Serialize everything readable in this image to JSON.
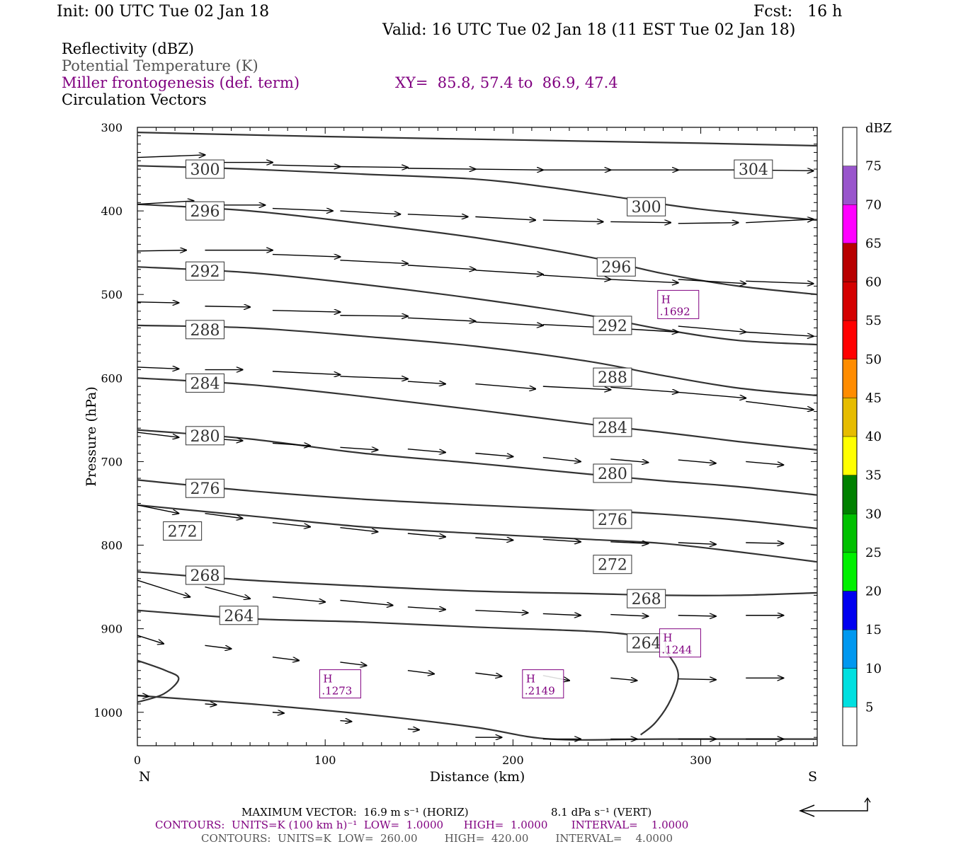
{
  "header": {
    "init": "Init: 00 UTC Tue 02 Jan 18",
    "fcst": "Fcst:   16 h",
    "valid": "Valid: 16 UTC Tue 02 Jan 18 (11 EST Tue 02 Jan 18)",
    "fields": [
      {
        "text": "Reflectivity (dBZ)",
        "color": "#000000"
      },
      {
        "text": "Potential Temperature (K)",
        "color": "#555555"
      },
      {
        "text": "Miller frontogenesis (def. term)",
        "color": "#800080"
      },
      {
        "text": "Circulation Vectors",
        "color": "#000000"
      }
    ],
    "xy": "XY=  85.8, 57.4 to  86.9, 47.4"
  },
  "chart_data": {
    "type": "cross-section",
    "xlabel": "Distance (km)",
    "ylabel": "Pressure (hPa)",
    "xlim": [
      0,
      362
    ],
    "ylim": [
      1040,
      300
    ],
    "x_ticks": [
      0,
      100,
      200,
      300
    ],
    "y_ticks": [
      300,
      400,
      500,
      600,
      700,
      800,
      900,
      1000
    ],
    "x_end_labels": {
      "left": "N",
      "right": "S"
    },
    "theta_contours": [
      {
        "label": "304",
        "points": [
          [
            0,
            306
          ],
          [
            100,
            311
          ],
          [
            200,
            315
          ],
          [
            300,
            319
          ],
          [
            362,
            322
          ]
        ]
      },
      {
        "label": "300",
        "points": [
          [
            0,
            346
          ],
          [
            60,
            350
          ],
          [
            120,
            356
          ],
          [
            180,
            362
          ],
          [
            220,
            372
          ],
          [
            260,
            385
          ],
          [
            300,
            398
          ],
          [
            362,
            411
          ]
        ]
      },
      {
        "label": "296",
        "points": [
          [
            0,
            392
          ],
          [
            60,
            400
          ],
          [
            120,
            415
          ],
          [
            180,
            432
          ],
          [
            240,
            455
          ],
          [
            280,
            475
          ],
          [
            320,
            490
          ],
          [
            362,
            500
          ]
        ]
      },
      {
        "label": "292",
        "points": [
          [
            0,
            467
          ],
          [
            60,
            474
          ],
          [
            120,
            488
          ],
          [
            180,
            505
          ],
          [
            240,
            525
          ],
          [
            280,
            542
          ],
          [
            320,
            555
          ],
          [
            362,
            560
          ]
        ]
      },
      {
        "label": "288",
        "points": [
          [
            0,
            537
          ],
          [
            60,
            540
          ],
          [
            120,
            550
          ],
          [
            180,
            562
          ],
          [
            240,
            580
          ],
          [
            280,
            597
          ],
          [
            320,
            612
          ],
          [
            362,
            621
          ]
        ]
      },
      {
        "label": "284",
        "points": [
          [
            0,
            600
          ],
          [
            60,
            608
          ],
          [
            120,
            622
          ],
          [
            180,
            638
          ],
          [
            240,
            655
          ],
          [
            280,
            665
          ],
          [
            320,
            676
          ],
          [
            362,
            686
          ]
        ]
      },
      {
        "label": "280",
        "points": [
          [
            0,
            662
          ],
          [
            60,
            673
          ],
          [
            120,
            690
          ],
          [
            180,
            702
          ],
          [
            240,
            715
          ],
          [
            280,
            723
          ],
          [
            320,
            730
          ],
          [
            362,
            740
          ]
        ]
      },
      {
        "label": "276",
        "points": [
          [
            0,
            722
          ],
          [
            60,
            735
          ],
          [
            120,
            745
          ],
          [
            180,
            752
          ],
          [
            240,
            758
          ],
          [
            280,
            763
          ],
          [
            320,
            770
          ],
          [
            362,
            780
          ]
        ]
      },
      {
        "label": "272",
        "points": [
          [
            0,
            752
          ],
          [
            60,
            765
          ],
          [
            120,
            778
          ],
          [
            180,
            786
          ],
          [
            240,
            793
          ],
          [
            280,
            798
          ],
          [
            320,
            808
          ],
          [
            362,
            820
          ]
        ]
      },
      {
        "label": "268",
        "points": [
          [
            0,
            832
          ],
          [
            60,
            842
          ],
          [
            120,
            849
          ],
          [
            180,
            855
          ],
          [
            240,
            858
          ],
          [
            280,
            860
          ],
          [
            320,
            860
          ],
          [
            362,
            857
          ]
        ]
      },
      {
        "label": "264",
        "points": [
          [
            0,
            878
          ],
          [
            60,
            888
          ],
          [
            120,
            892
          ],
          [
            180,
            898
          ],
          [
            240,
            903
          ],
          [
            265,
            908
          ],
          [
            275,
            915
          ],
          [
            283,
            932
          ],
          [
            288,
            955
          ],
          [
            284,
            985
          ],
          [
            276,
            1012
          ],
          [
            268,
            1027
          ]
        ]
      },
      {
        "label": "",
        "points": [
          [
            0,
            938
          ],
          [
            15,
            950
          ],
          [
            22,
            960
          ],
          [
            14,
            978
          ],
          [
            0,
            988
          ]
        ]
      },
      {
        "label": "",
        "points": [
          [
            0,
            980
          ],
          [
            60,
            990
          ],
          [
            120,
            1002
          ],
          [
            180,
            1018
          ],
          [
            220,
            1032
          ],
          [
            280,
            1032
          ],
          [
            362,
            1032
          ]
        ]
      }
    ],
    "theta_labels": [
      {
        "text": "300",
        "x": 36,
        "p": 350
      },
      {
        "text": "304",
        "x": 328,
        "p": 350
      },
      {
        "text": "296",
        "x": 36,
        "p": 400
      },
      {
        "text": "300",
        "x": 271,
        "p": 395
      },
      {
        "text": "292",
        "x": 36,
        "p": 472
      },
      {
        "text": "296",
        "x": 255,
        "p": 467
      },
      {
        "text": "288",
        "x": 36,
        "p": 542
      },
      {
        "text": "292",
        "x": 253,
        "p": 537
      },
      {
        "text": "284",
        "x": 36,
        "p": 606
      },
      {
        "text": "288",
        "x": 253,
        "p": 599
      },
      {
        "text": "280",
        "x": 36,
        "p": 669
      },
      {
        "text": "284",
        "x": 253,
        "p": 659
      },
      {
        "text": "276",
        "x": 36,
        "p": 732
      },
      {
        "text": "280",
        "x": 253,
        "p": 714
      },
      {
        "text": "272",
        "x": 24,
        "p": 783
      },
      {
        "text": "276",
        "x": 253,
        "p": 769
      },
      {
        "text": "268",
        "x": 36,
        "p": 836
      },
      {
        "text": "272",
        "x": 253,
        "p": 823
      },
      {
        "text": "264",
        "x": 54,
        "p": 884
      },
      {
        "text": "268",
        "x": 271,
        "p": 864
      },
      {
        "text": "264",
        "x": 271,
        "p": 917
      }
    ],
    "frontogenesis_highs": [
      {
        "label": "H",
        "value": ".1692",
        "x": 288,
        "p": 512
      },
      {
        "label": "H",
        "value": ".1244",
        "x": 289,
        "p": 917
      },
      {
        "label": "H",
        "value": ".1273",
        "x": 108,
        "p": 966
      },
      {
        "label": "H",
        "value": ".2149",
        "x": 216,
        "p": 966
      }
    ],
    "vectors": {
      "note": "each vector: start (x km, p hPa) to end (x km, p hPa)",
      "list": [
        [
          0,
          336,
          36,
          333
        ],
        [
          36,
          342,
          72,
          342
        ],
        [
          72,
          345,
          108,
          347
        ],
        [
          108,
          347,
          144,
          348
        ],
        [
          144,
          349,
          180,
          350
        ],
        [
          180,
          350,
          216,
          351
        ],
        [
          216,
          351,
          252,
          351
        ],
        [
          252,
          351,
          288,
          351
        ],
        [
          288,
          351,
          324,
          351
        ],
        [
          324,
          351,
          360,
          352
        ],
        [
          0,
          392,
          30,
          388
        ],
        [
          36,
          393,
          68,
          393
        ],
        [
          72,
          397,
          104,
          400
        ],
        [
          108,
          400,
          140,
          404
        ],
        [
          144,
          404,
          176,
          407
        ],
        [
          180,
          407,
          212,
          411
        ],
        [
          216,
          411,
          248,
          413
        ],
        [
          252,
          413,
          284,
          414
        ],
        [
          288,
          415,
          320,
          414
        ],
        [
          324,
          414,
          360,
          410
        ],
        [
          0,
          448,
          26,
          447
        ],
        [
          36,
          447,
          72,
          447
        ],
        [
          72,
          452,
          108,
          455
        ],
        [
          108,
          459,
          144,
          463
        ],
        [
          144,
          465,
          180,
          470
        ],
        [
          180,
          471,
          216,
          476
        ],
        [
          216,
          477,
          252,
          482
        ],
        [
          252,
          482,
          288,
          486
        ],
        [
          288,
          482,
          324,
          487
        ],
        [
          324,
          484,
          360,
          487
        ],
        [
          0,
          509,
          22,
          510
        ],
        [
          36,
          514,
          60,
          515
        ],
        [
          72,
          519,
          108,
          521
        ],
        [
          108,
          525,
          144,
          526
        ],
        [
          144,
          528,
          180,
          532
        ],
        [
          180,
          533,
          216,
          537
        ],
        [
          216,
          536,
          252,
          540
        ],
        [
          252,
          540,
          288,
          545
        ],
        [
          288,
          538,
          324,
          545
        ],
        [
          324,
          545,
          360,
          550
        ],
        [
          0,
          587,
          22,
          589
        ],
        [
          36,
          590,
          56,
          590
        ],
        [
          72,
          592,
          108,
          596
        ],
        [
          108,
          598,
          144,
          601
        ],
        [
          144,
          604,
          164,
          607
        ],
        [
          180,
          607,
          212,
          613
        ],
        [
          216,
          610,
          252,
          614
        ],
        [
          252,
          611,
          288,
          617
        ],
        [
          288,
          617,
          324,
          624
        ],
        [
          324,
          628,
          360,
          638
        ],
        [
          0,
          665,
          22,
          671
        ],
        [
          36,
          672,
          56,
          675
        ],
        [
          72,
          678,
          92,
          681
        ],
        [
          108,
          683,
          128,
          686
        ],
        [
          144,
          685,
          164,
          689
        ],
        [
          180,
          690,
          200,
          694
        ],
        [
          216,
          695,
          236,
          700
        ],
        [
          252,
          697,
          272,
          701
        ],
        [
          288,
          698,
          308,
          702
        ],
        [
          324,
          700,
          344,
          704
        ],
        [
          0,
          752,
          22,
          762
        ],
        [
          36,
          762,
          56,
          768
        ],
        [
          72,
          773,
          92,
          778
        ],
        [
          108,
          779,
          128,
          784
        ],
        [
          144,
          786,
          164,
          790
        ],
        [
          180,
          791,
          200,
          794
        ],
        [
          216,
          793,
          236,
          796
        ],
        [
          252,
          796,
          272,
          798
        ],
        [
          288,
          797,
          308,
          799
        ],
        [
          324,
          797,
          344,
          798
        ],
        [
          0,
          842,
          28,
          862
        ],
        [
          36,
          850,
          60,
          864
        ],
        [
          72,
          862,
          100,
          868
        ],
        [
          108,
          866,
          136,
          872
        ],
        [
          144,
          874,
          164,
          877
        ],
        [
          180,
          878,
          208,
          881
        ],
        [
          216,
          882,
          236,
          884
        ],
        [
          252,
          883,
          272,
          885
        ],
        [
          288,
          884,
          308,
          885
        ],
        [
          324,
          884,
          344,
          884
        ],
        [
          0,
          908,
          14,
          918
        ],
        [
          36,
          920,
          50,
          924
        ],
        [
          72,
          934,
          86,
          938
        ],
        [
          108,
          940,
          122,
          944
        ],
        [
          144,
          950,
          158,
          954
        ],
        [
          180,
          953,
          194,
          957
        ],
        [
          216,
          956,
          230,
          962
        ],
        [
          252,
          959,
          266,
          962
        ],
        [
          288,
          960,
          308,
          961
        ],
        [
          324,
          959,
          344,
          959
        ],
        [
          0,
          980,
          6,
          981
        ],
        [
          36,
          990,
          42,
          991
        ],
        [
          72,
          1000,
          78,
          1001
        ],
        [
          108,
          1010,
          114,
          1011
        ],
        [
          144,
          1020,
          150,
          1021
        ],
        [
          180,
          1030,
          194,
          1030
        ],
        [
          216,
          1032,
          236,
          1032
        ],
        [
          252,
          1032,
          266,
          1032
        ],
        [
          288,
          1032,
          308,
          1032
        ],
        [
          324,
          1032,
          344,
          1032
        ]
      ]
    },
    "colorbar": {
      "title": "dBZ",
      "levels": [
        "5",
        "10",
        "15",
        "20",
        "25",
        "30",
        "35",
        "40",
        "45",
        "50",
        "55",
        "60",
        "65",
        "70",
        "75"
      ],
      "colors": [
        "#ffffff",
        "#00e0e0",
        "#0098f0",
        "#0000f0",
        "#00f000",
        "#00c000",
        "#008000",
        "#ffff00",
        "#e6bc00",
        "#ff8c00",
        "#ff0000",
        "#d40000",
        "#b80000",
        "#ff00ff",
        "#9955cc",
        "#ffffff"
      ]
    }
  },
  "footer": {
    "line1_left": "MAXIMUM VECTOR:  16.9 m s⁻¹ (HORIZ)",
    "line1_right": "8.1 dPa s⁻¹ (VERT)",
    "line2": "CONTOURS:  UNITS=K (100 km h)⁻¹  LOW=  1.0000      HIGH=  1.0000       INTERVAL=    1.0000",
    "line3": "CONTOURS:  UNITS=K  LOW=  260.00        HIGH=  420.00        INTERVAL=    4.0000"
  }
}
